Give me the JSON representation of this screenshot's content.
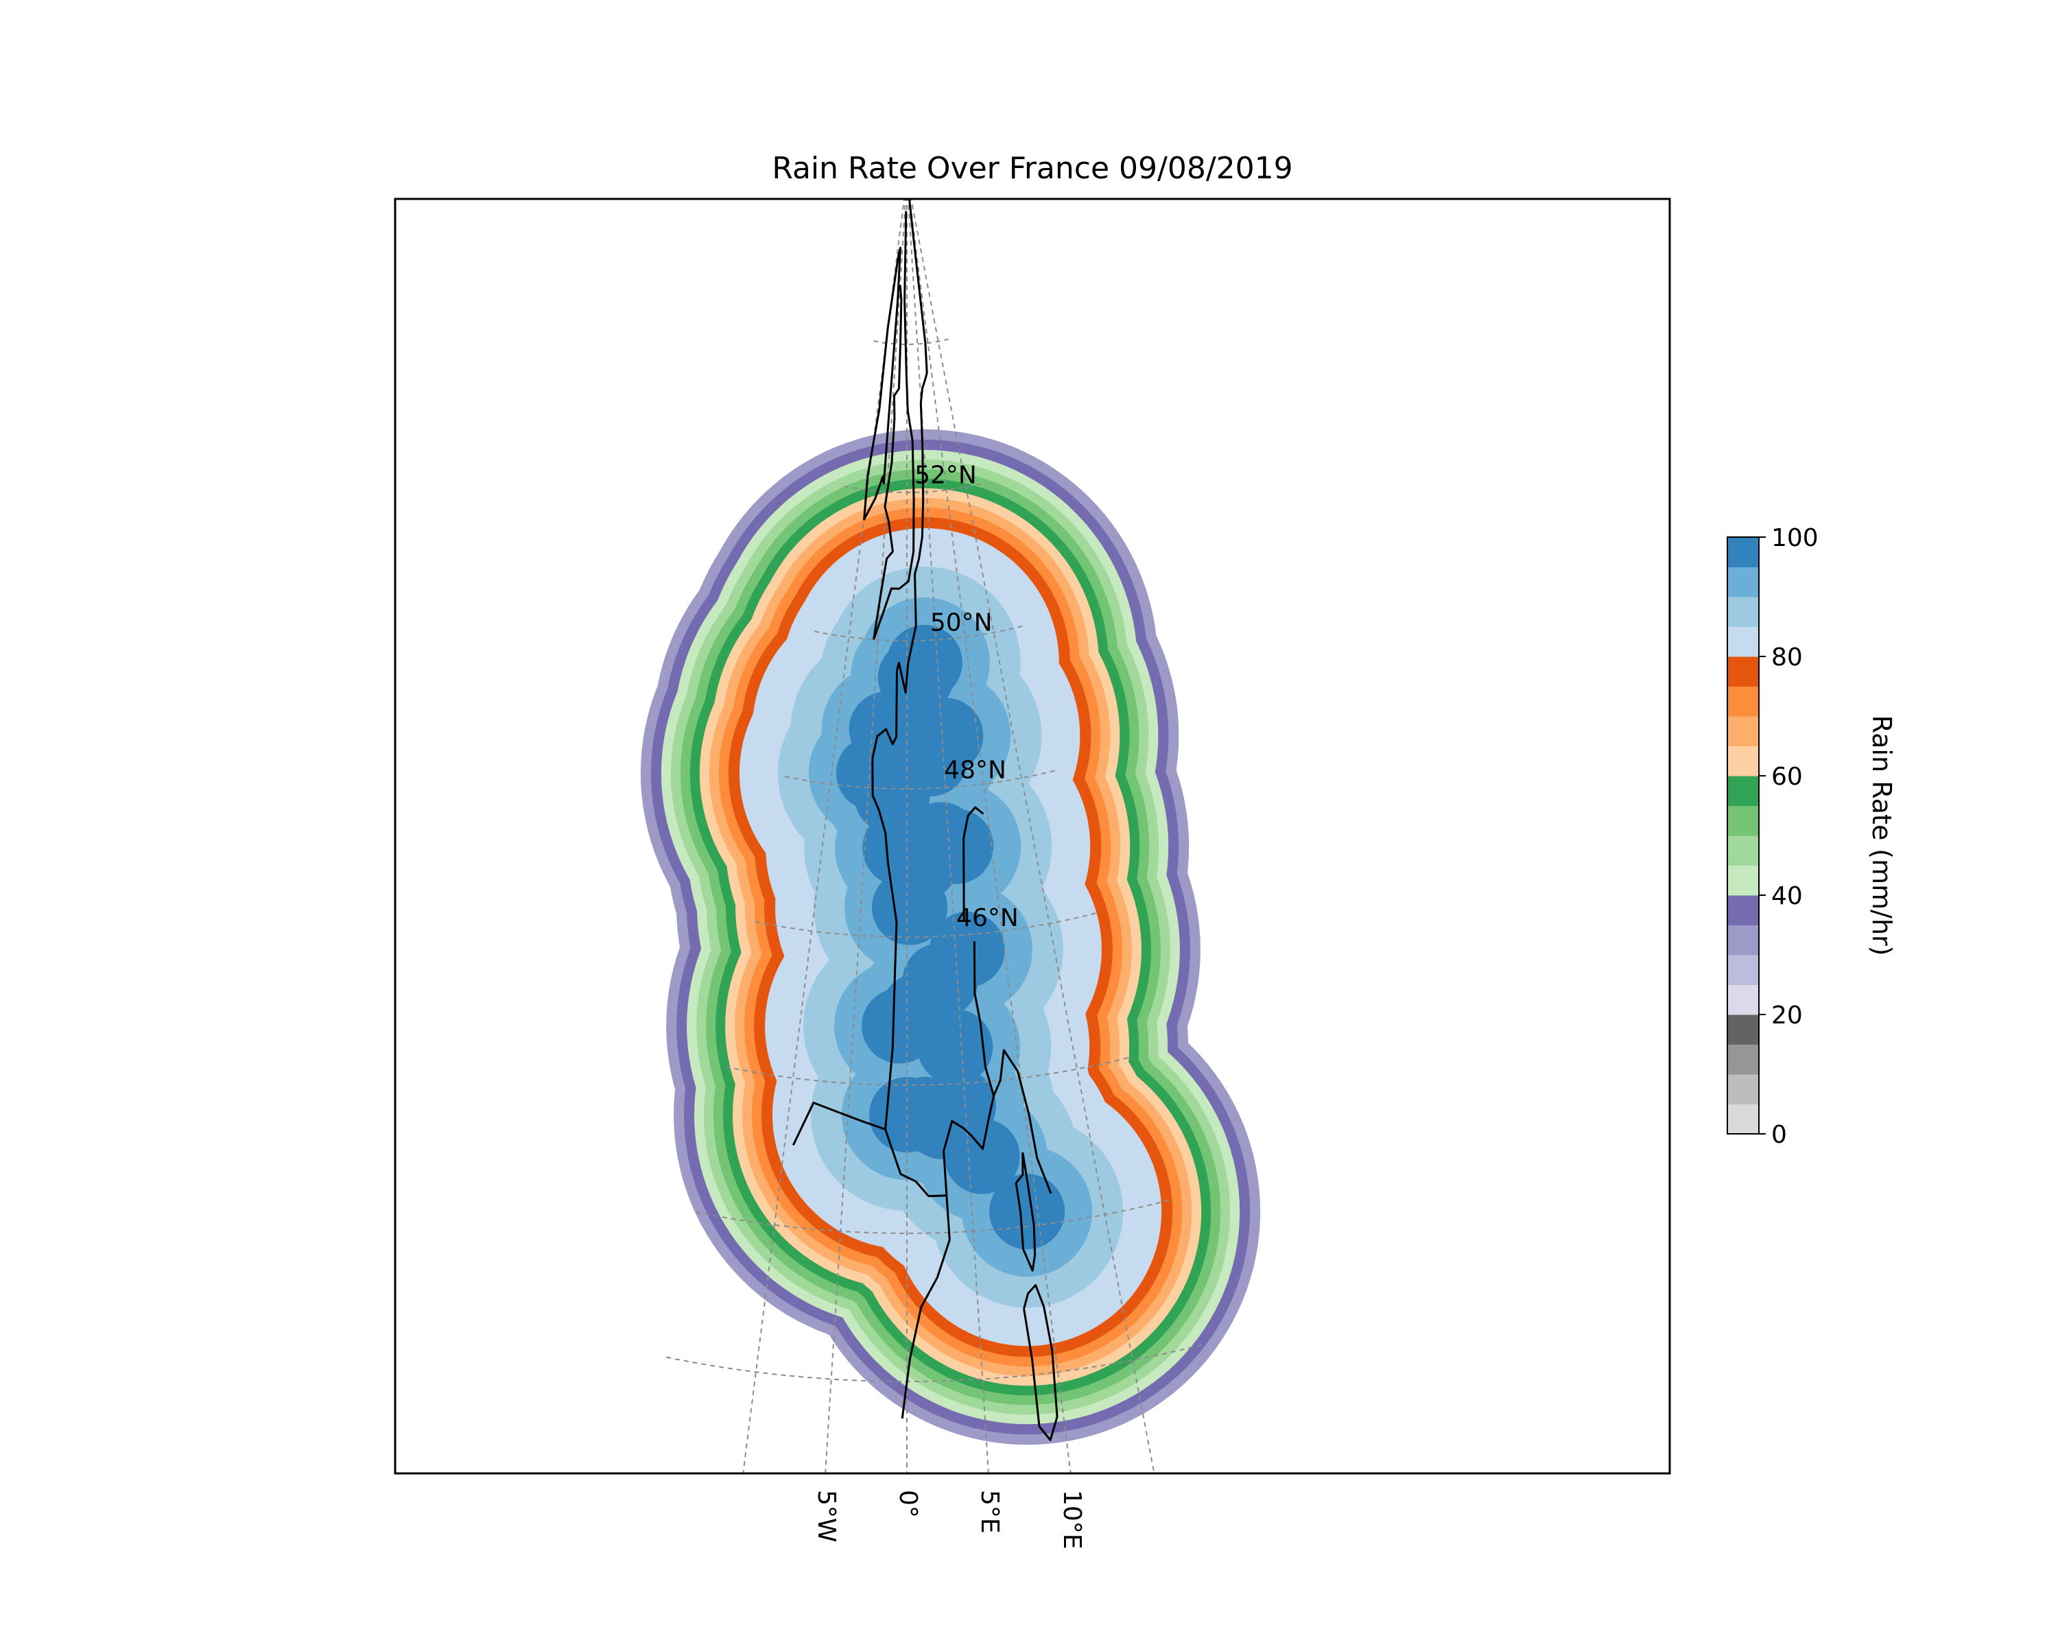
{
  "figure": {
    "title": "Rain Rate Over France 09/08/2019"
  },
  "map": {
    "projection": "conic (Lambert-like)",
    "region": "France, Corsica and surrounding coasts",
    "graticule": {
      "style": "gray dashed",
      "parallels": [
        "52°N",
        "50°N",
        "48°N",
        "46°N"
      ],
      "meridians": [
        "5°W",
        "0°",
        "5°E",
        "10°E"
      ]
    },
    "coastline_color": "#000000",
    "field": "Rain Rate",
    "field_pattern": "radar composite, values highest (blue, ~80-100) near radar centers, decreasing outward through orange (60-80), green (40-60) and purple/gray (<40) at the coverage edge"
  },
  "colorbar": {
    "label": "Rain Rate (mm/hr)",
    "min": 0,
    "max": 100,
    "ticks": [
      "0",
      "20",
      "40",
      "60",
      "80",
      "100"
    ],
    "colormap": "tab20c (reversed)",
    "colors_bottom_to_top": [
      "#d9d9d9",
      "#bdbdbd",
      "#969696",
      "#636363",
      "#dadaeb",
      "#bcbddc",
      "#9e9ac8",
      "#756bb1",
      "#c7e9c0",
      "#a1d99b",
      "#74c476",
      "#31a354",
      "#fdd0a2",
      "#fdae6b",
      "#fd8d3c",
      "#e6550d",
      "#c6dbef",
      "#9ecae1",
      "#6baed6",
      "#3182bd"
    ]
  },
  "radar_centers": [
    {
      "lon": -4.4,
      "lat": 48.2
    },
    {
      "lon": -2.9,
      "lat": 48.8
    },
    {
      "lon": -1.9,
      "lat": 47.9
    },
    {
      "lon": -0.5,
      "lat": 48.8
    },
    {
      "lon": -0.8,
      "lat": 47.2
    },
    {
      "lon": 0.3,
      "lat": 46.4
    },
    {
      "lon": 1.4,
      "lat": 49.5
    },
    {
      "lon": 2.9,
      "lat": 49.7
    },
    {
      "lon": 1.4,
      "lat": 48.4
    },
    {
      "lon": 3.2,
      "lat": 48.4
    },
    {
      "lon": 5.5,
      "lat": 48.7
    },
    {
      "lon": 1.6,
      "lat": 47.0
    },
    {
      "lon": 4.1,
      "lat": 47.3
    },
    {
      "lon": 5.8,
      "lat": 47.2
    },
    {
      "lon": -0.7,
      "lat": 44.8
    },
    {
      "lon": 1.1,
      "lat": 45.0
    },
    {
      "lon": 3.3,
      "lat": 45.4
    },
    {
      "lon": 4.4,
      "lat": 44.5
    },
    {
      "lon": 0.0,
      "lat": 43.6
    },
    {
      "lon": 1.6,
      "lat": 43.6
    },
    {
      "lon": 3.0,
      "lat": 43.5
    },
    {
      "lon": 4.4,
      "lat": 43.7
    },
    {
      "lon": 6.1,
      "lat": 43.0
    },
    {
      "lon": 6.2,
      "lat": 45.8
    },
    {
      "lon": 9.2,
      "lat": 42.2
    }
  ]
}
